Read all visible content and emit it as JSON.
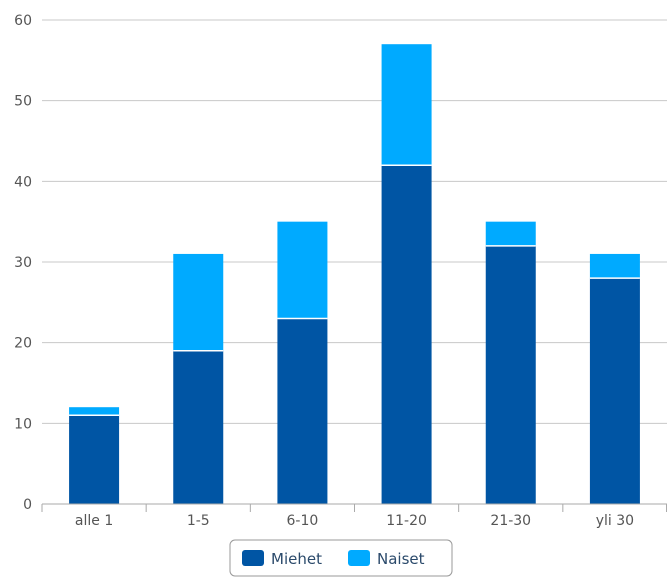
{
  "chart_data": {
    "type": "bar",
    "stacked": true,
    "categories": [
      "alle 1",
      "1-5",
      "6-10",
      "11-20",
      "21-30",
      "yli 30"
    ],
    "series": [
      {
        "name": "Miehet",
        "values": [
          11,
          19,
          23,
          42,
          32,
          28
        ],
        "color": "#0055a4"
      },
      {
        "name": "Naiset",
        "values": [
          1,
          12,
          12,
          15,
          3,
          3
        ],
        "color": "#00aaff"
      }
    ],
    "ylim": [
      0,
      60
    ],
    "yticks": [
      0,
      10,
      20,
      30,
      40,
      50,
      60
    ],
    "grid": true,
    "legend_position": "bottom-center",
    "colors": {
      "grid": "#c8c8c8",
      "axis": "#aaaaaa",
      "tick_text": "#555555",
      "legend_border": "#999999",
      "bar_separator": "#ffffff"
    }
  }
}
